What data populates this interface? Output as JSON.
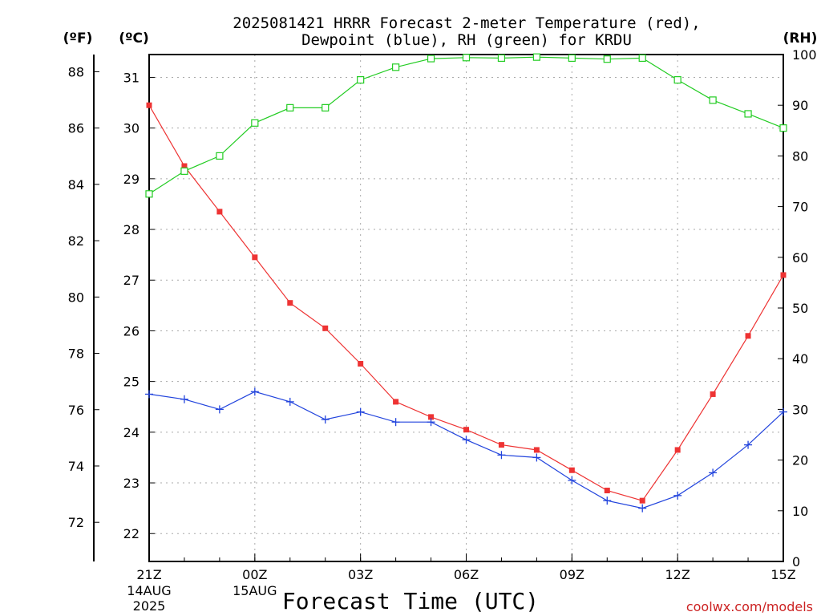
{
  "title_line1": "2025081421 HRRR Forecast 2-meter Temperature (red),",
  "title_line2": "Dewpoint (blue), RH (green) for KRDU",
  "units": {
    "fahrenheit": "(ºF)",
    "celsius": "(ºC)",
    "rh": "(RH)"
  },
  "xlabel": "Forecast Time (UTC)",
  "credit": "coolwx.com/models",
  "colors": {
    "temperature": "#ee3333",
    "dewpoint": "#2244dd",
    "rh": "#22cc22",
    "grid": "#aaaaaa",
    "credit": "#cc2222"
  },
  "chart_data": {
    "type": "line",
    "x": [
      "21Z",
      "22Z",
      "23Z",
      "00Z",
      "01Z",
      "02Z",
      "03Z",
      "04Z",
      "05Z",
      "06Z",
      "07Z",
      "08Z",
      "09Z",
      "10Z",
      "11Z",
      "12Z",
      "13Z",
      "14Z",
      "15Z"
    ],
    "x_ticks": [
      {
        "label": "21Z",
        "date1": "14AUG",
        "date2": "2025"
      },
      {
        "label": "00Z",
        "date1": "15AUG",
        "date2": ""
      },
      {
        "label": "03Z",
        "date1": "",
        "date2": ""
      },
      {
        "label": "06Z",
        "date1": "",
        "date2": ""
      },
      {
        "label": "09Z",
        "date1": "",
        "date2": ""
      },
      {
        "label": "12Z",
        "date1": "",
        "date2": ""
      },
      {
        "label": "15Z",
        "date1": "",
        "date2": ""
      }
    ],
    "celsius_ticks": [
      22,
      23,
      24,
      25,
      26,
      27,
      28,
      29,
      30,
      31
    ],
    "fahrenheit_ticks": [
      72,
      74,
      76,
      78,
      80,
      82,
      84,
      86,
      88
    ],
    "rh_ticks": [
      0,
      10,
      20,
      30,
      40,
      50,
      60,
      70,
      80,
      90,
      100
    ],
    "celsius_range": [
      21.45,
      31.45
    ],
    "rh_range": [
      0,
      100
    ],
    "grid": true,
    "series": [
      {
        "key": "temperature",
        "units": "°C",
        "marker": "filled-square",
        "values": [
          30.45,
          29.25,
          28.35,
          27.45,
          26.55,
          26.05,
          25.35,
          24.6,
          24.3,
          24.05,
          23.75,
          23.65,
          23.25,
          22.85,
          22.65,
          23.65,
          24.75,
          25.9,
          27.1
        ]
      },
      {
        "key": "dewpoint",
        "units": "°C",
        "marker": "plus",
        "values": [
          24.75,
          24.65,
          24.45,
          24.8,
          24.6,
          24.25,
          24.4,
          24.2,
          24.2,
          23.85,
          23.55,
          23.5,
          23.05,
          22.65,
          22.5,
          22.75,
          23.2,
          23.75,
          24.4
        ]
      },
      {
        "key": "rh",
        "units": "%",
        "marker": "open-square",
        "values": [
          72.5,
          77,
          80,
          86.5,
          89.5,
          89.5,
          95,
          97.5,
          99.2,
          99.4,
          99.3,
          99.5,
          99.3,
          99.1,
          99.3,
          95,
          91,
          88.3,
          85.5
        ]
      }
    ]
  }
}
